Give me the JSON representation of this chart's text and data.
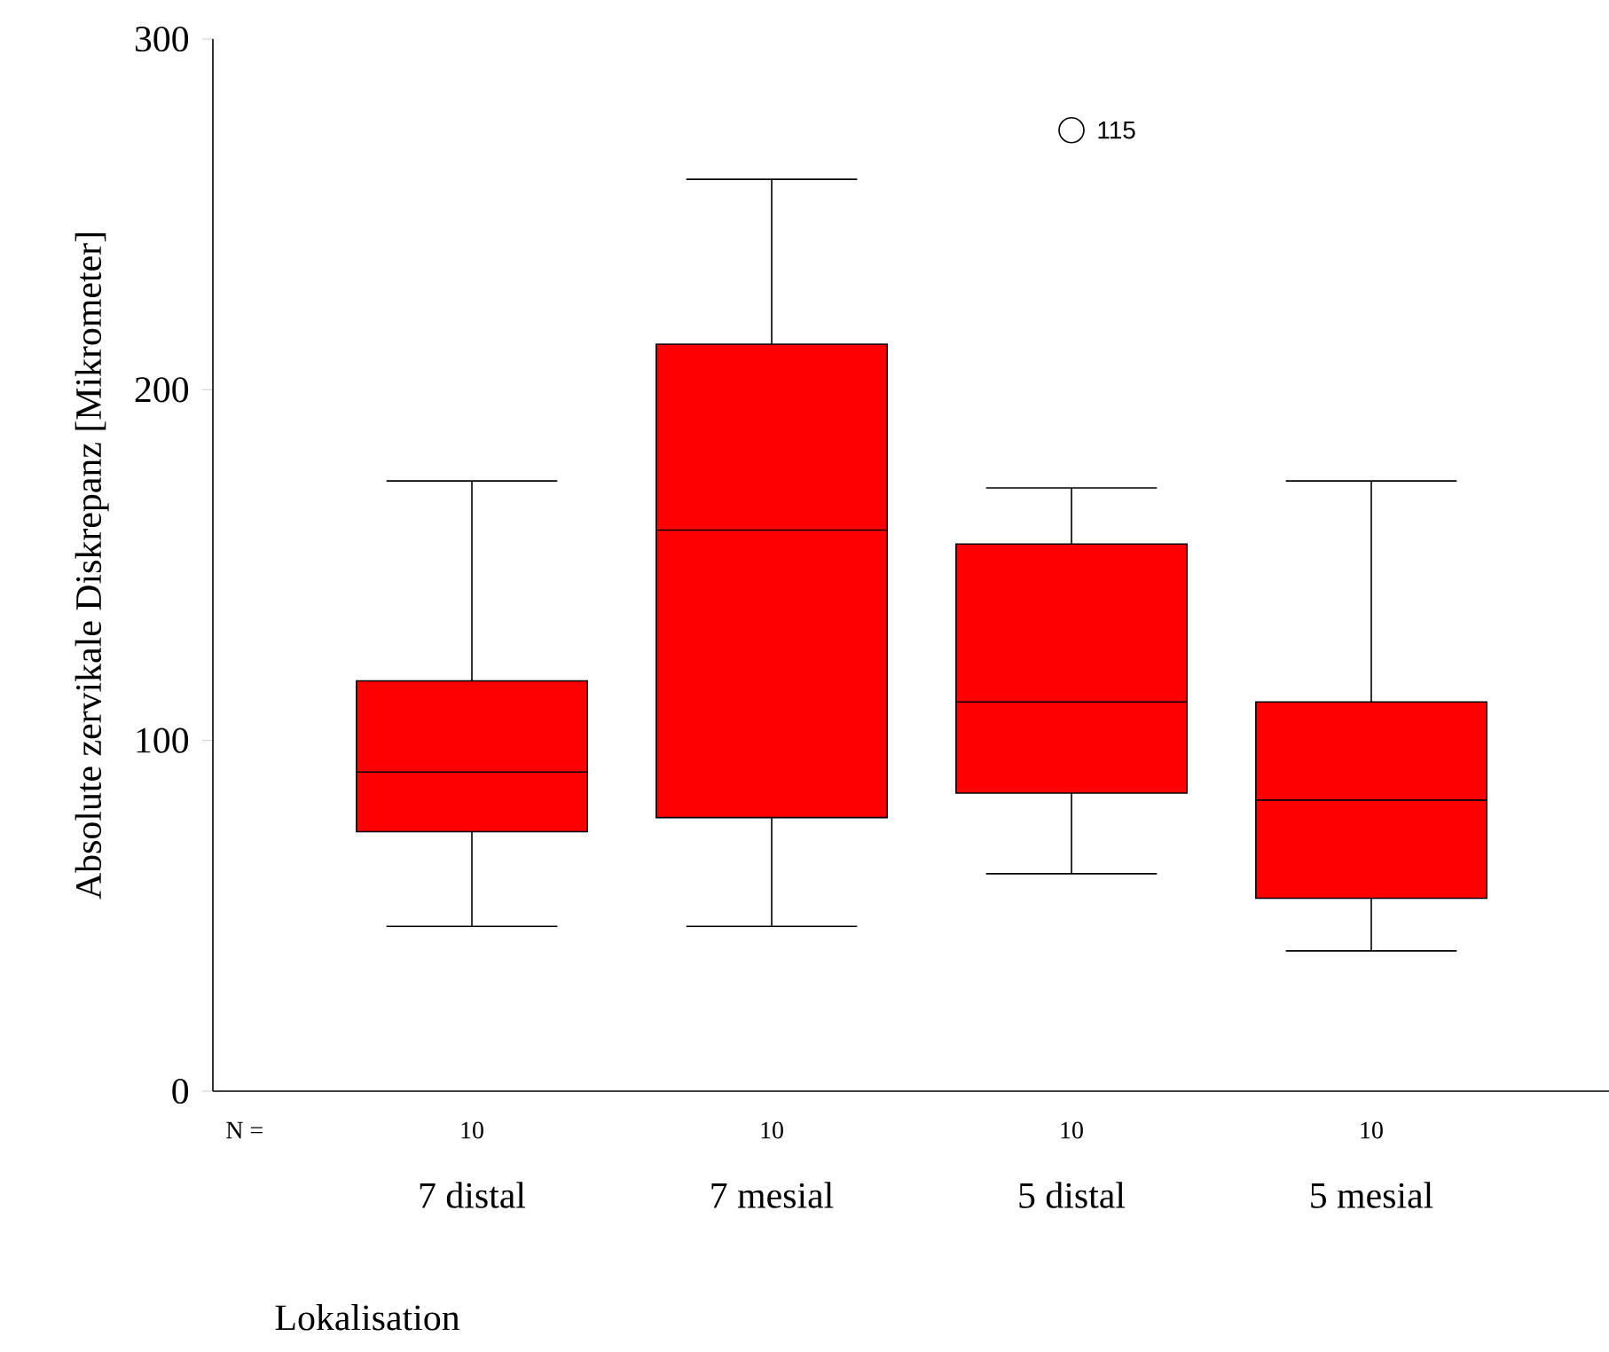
{
  "chart_data": {
    "type": "box",
    "xlabel": "Lokalisation",
    "ylabel": "Absolute zervikale Diskrepanz [Mikrometer]",
    "categories": [
      "7 distal",
      "7 mesial",
      "5 distal",
      "5 mesial"
    ],
    "boxes": [
      {
        "low": 47,
        "q1": 74,
        "median": 91,
        "q3": 117,
        "high": 174
      },
      {
        "low": 47,
        "q1": 78,
        "median": 160,
        "q3": 213,
        "high": 260
      },
      {
        "low": 62,
        "q1": 85,
        "median": 111,
        "q3": 156,
        "high": 172,
        "outliers": [
          274
        ]
      },
      {
        "low": 40,
        "q1": 55,
        "median": 83,
        "q3": 111,
        "high": 174
      }
    ],
    "color": "#ff0000",
    "ylim": [
      0,
      300
    ],
    "yticks": [
      0,
      100,
      200,
      300
    ],
    "grid": false,
    "marker": "circle",
    "annotations": [
      "N =",
      "10",
      "10",
      "10",
      "10",
      "115"
    ]
  }
}
